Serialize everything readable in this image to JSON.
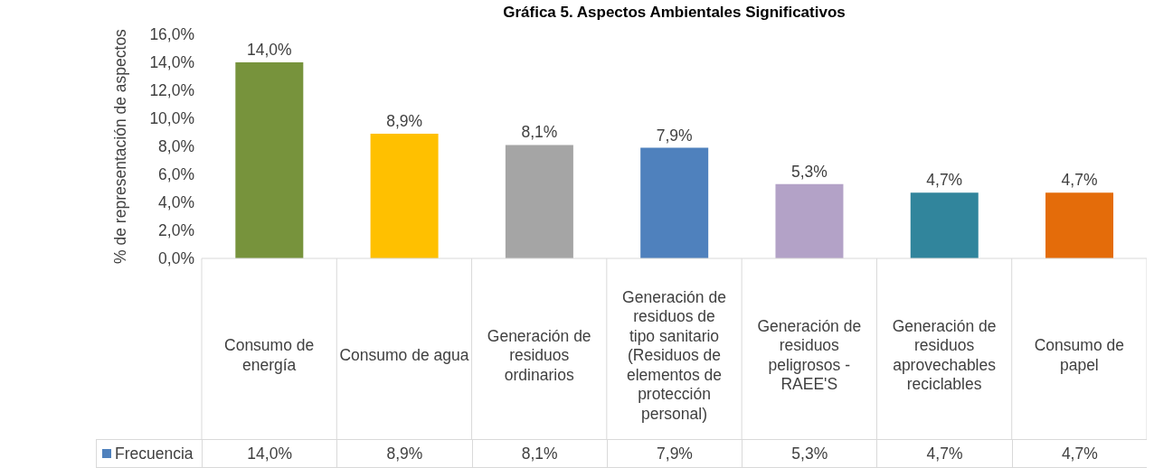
{
  "chart_data": {
    "type": "bar",
    "title": "Gráfica 5. Aspectos Ambientales Significativos",
    "ylabel": "% de representación de aspectos",
    "categories": [
      "Consumo de energía",
      "Consumo de agua",
      "Generación de residuos ordinarios",
      "Generación de residuos de tipo sanitario (Residuos de elementos de protección personal)",
      "Generación de residuos peligrosos - RAEE'S",
      "Generación de residuos aprovechables reciclables",
      "Consumo de papel"
    ],
    "series": [
      {
        "name": "Frecuencia",
        "color": "#4f81bd",
        "values": [
          14.0,
          8.9,
          8.1,
          7.9,
          5.3,
          4.7,
          4.7
        ],
        "colors": [
          "#77933c",
          "#ffc000",
          "#a5a5a5",
          "#4f81bd",
          "#b3a2c7",
          "#31859c",
          "#e46c0a"
        ],
        "value_labels": [
          "14,0%",
          "8,9%",
          "8,1%",
          "7,9%",
          "5,3%",
          "4,7%",
          "4,7%"
        ]
      }
    ],
    "ylim": [
      0,
      16
    ],
    "yticks": [
      {
        "value": 0,
        "label": "0,0%"
      },
      {
        "value": 2,
        "label": "2,0%"
      },
      {
        "value": 4,
        "label": "4,0%"
      },
      {
        "value": 6,
        "label": "6,0%"
      },
      {
        "value": 8,
        "label": "8,0%"
      },
      {
        "value": 10,
        "label": "10,0%"
      },
      {
        "value": 12,
        "label": "12,0%"
      },
      {
        "value": 14,
        "label": "14,0%"
      },
      {
        "value": 16,
        "label": "16,0%"
      }
    ],
    "grid": false,
    "legend": "bottom"
  }
}
